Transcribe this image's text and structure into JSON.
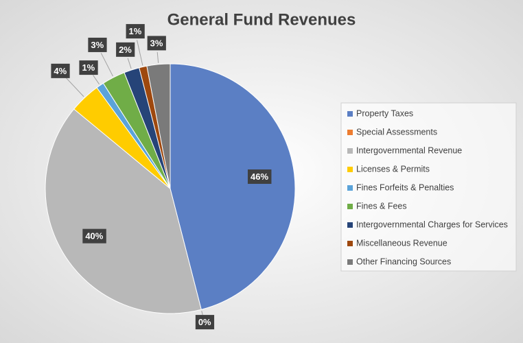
{
  "chart_data": {
    "type": "pie",
    "title": "General Fund Revenues",
    "categories": [
      "Property Taxes",
      "Special Assessments",
      "Intergovernmental Revenue",
      "Licenses & Permits",
      "Fines Forfeits & Penalties",
      "Fines & Fees",
      "Intergovernmental Charges for Services",
      "Miscellaneous Revenue",
      "Other Financing Sources"
    ],
    "values": [
      46,
      0,
      40,
      4,
      1,
      3,
      2,
      1,
      3
    ],
    "value_labels": [
      "46%",
      "0%",
      "40%",
      "4%",
      "1%",
      "3%",
      "2%",
      "1%",
      "3%"
    ],
    "colors": [
      "#5b7fc4",
      "#ed7d31",
      "#b8b8b8",
      "#ffcc00",
      "#5ba3d9",
      "#70ad47",
      "#264478",
      "#9e480e",
      "#7a7a7a"
    ],
    "legend": "right"
  }
}
